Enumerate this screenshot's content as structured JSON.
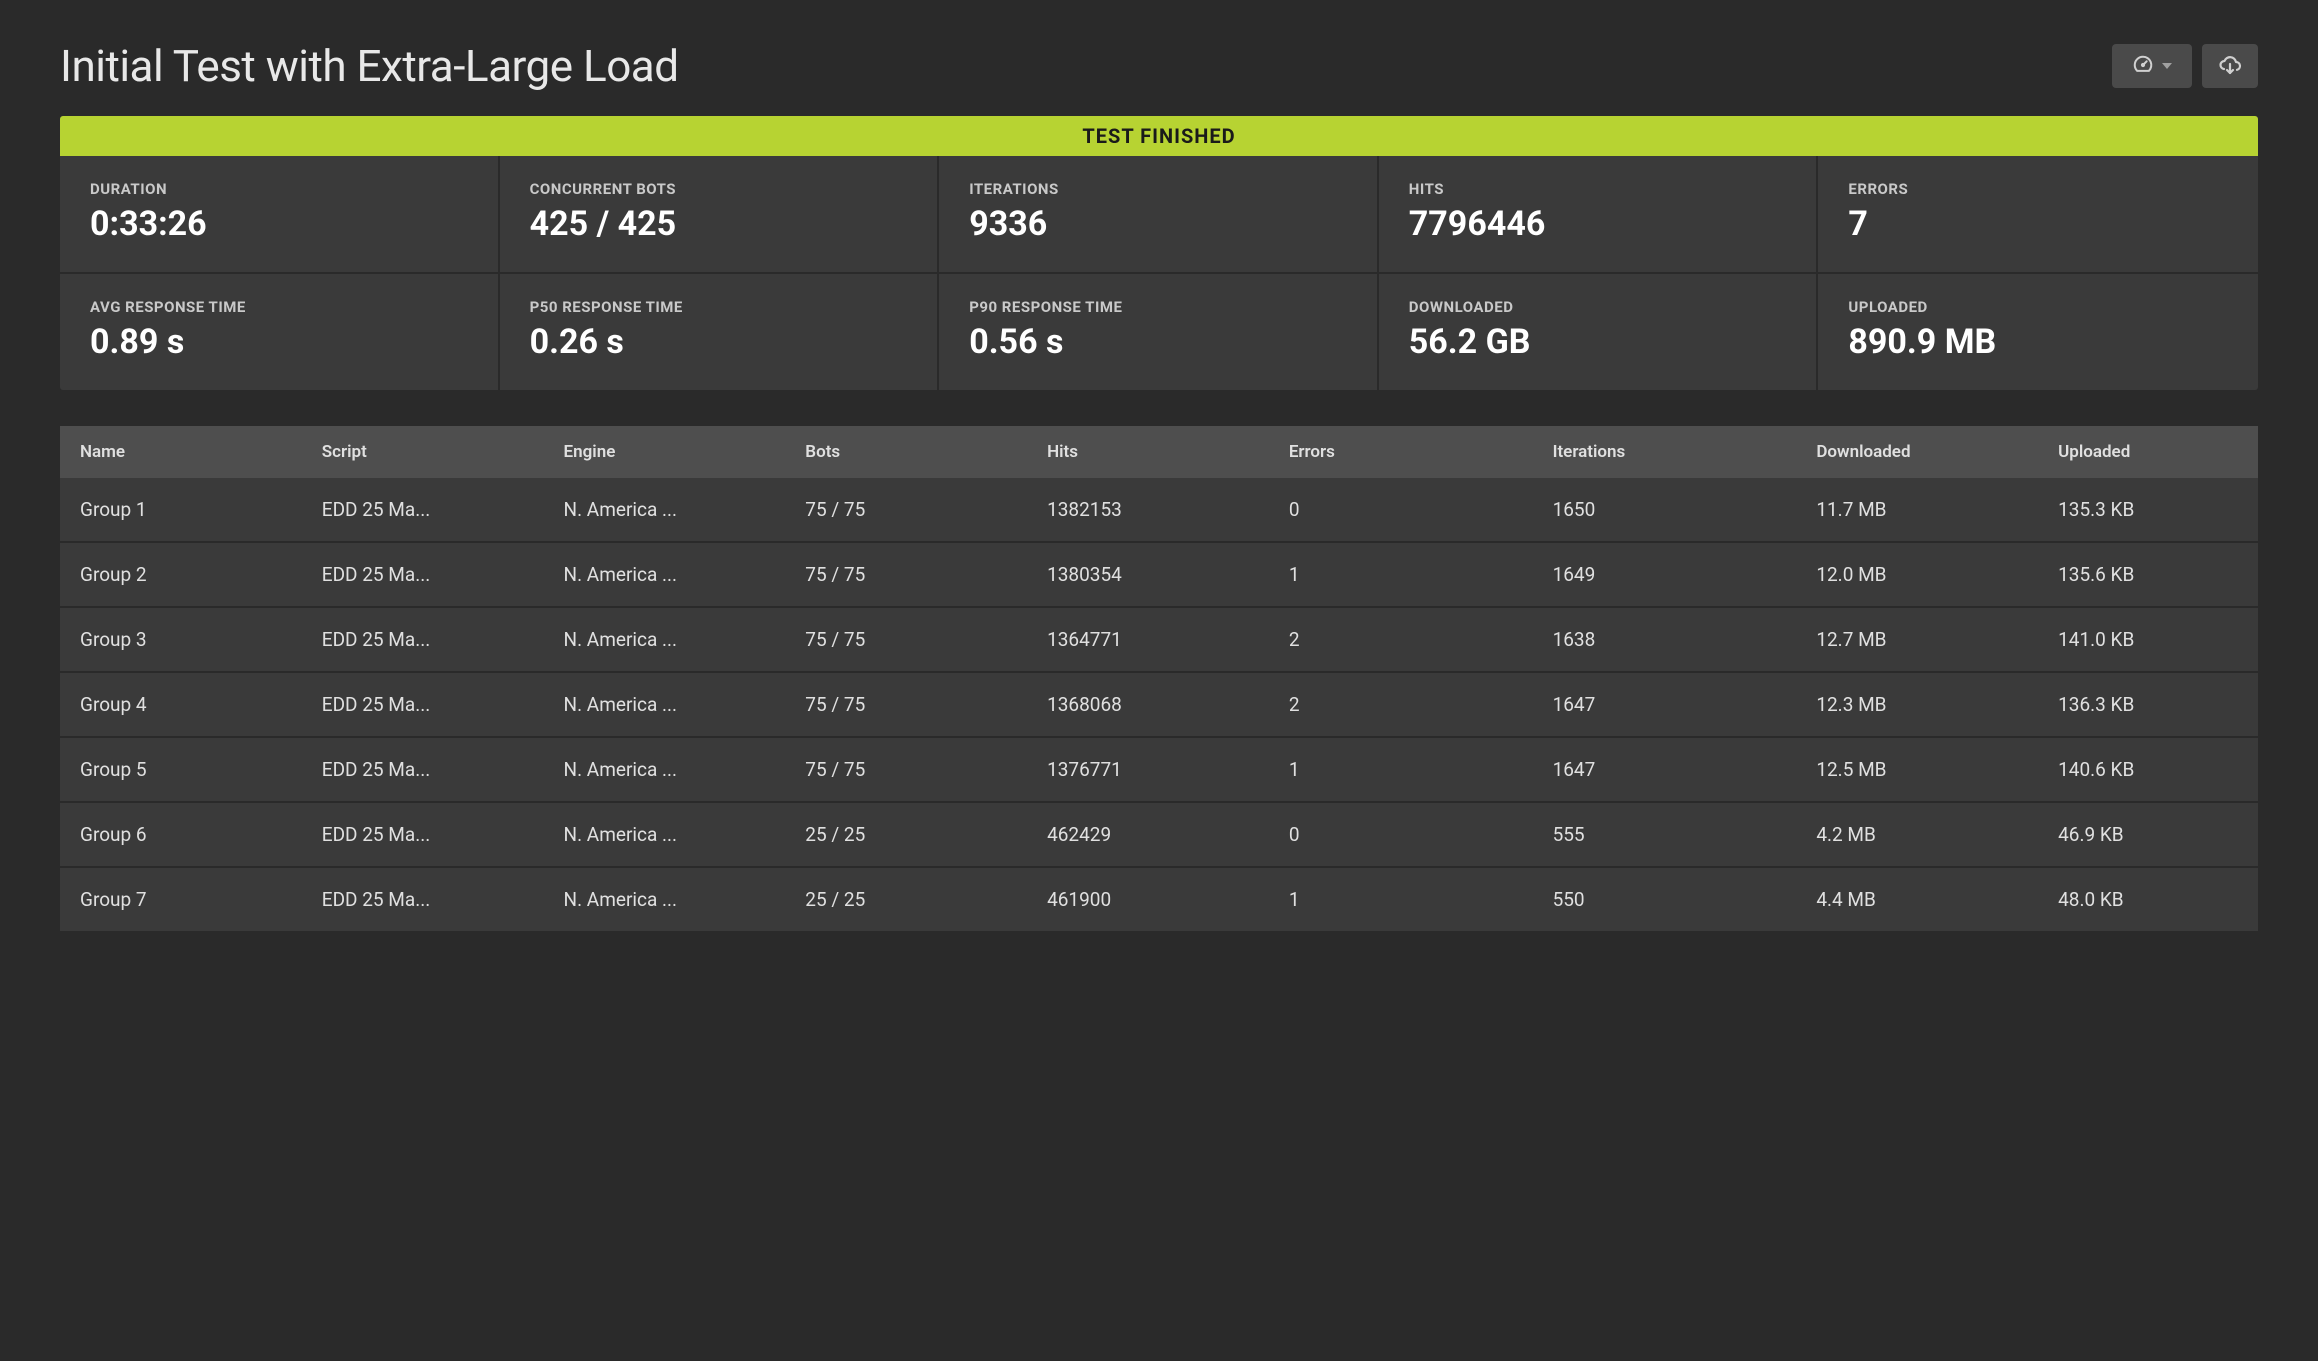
{
  "title": "Initial Test with Extra-Large Load",
  "status_text": "TEST FINISHED",
  "colors": {
    "background": "#2a2a2a",
    "panel": "#3a3a3a",
    "header_row": "#4e4e4e",
    "status_bg": "#b7d332",
    "status_fg": "#1a1a1a",
    "text": "#e8e8e8",
    "text_muted": "#c9c9c9"
  },
  "metrics": {
    "duration": {
      "label": "DURATION",
      "value": "0:33:26"
    },
    "concurrent": {
      "label": "CONCURRENT BOTS",
      "value": "425 / 425"
    },
    "iterations": {
      "label": "ITERATIONS",
      "value": "9336"
    },
    "hits": {
      "label": "HITS",
      "value": "7796446"
    },
    "errors": {
      "label": "ERRORS",
      "value": "7"
    },
    "avg_response": {
      "label": "AVG RESPONSE TIME",
      "value": "0.89 s"
    },
    "p50_response": {
      "label": "P50 RESPONSE TIME",
      "value": "0.26 s"
    },
    "p90_response": {
      "label": "P90 RESPONSE TIME",
      "value": "0.56 s"
    },
    "downloaded": {
      "label": "DOWNLOADED",
      "value": "56.2 GB"
    },
    "uploaded": {
      "label": "UPLOADED",
      "value": "890.9 MB"
    }
  },
  "table": {
    "columns": [
      "Name",
      "Script",
      "Engine",
      "Bots",
      "Hits",
      "Errors",
      "Iterations",
      "Downloaded",
      "Uploaded"
    ],
    "rows": [
      {
        "name": "Group 1",
        "script": "EDD 25 Ma...",
        "engine": "N. America ...",
        "bots": "75 / 75",
        "hits": "1382153",
        "errors": "0",
        "iterations": "1650",
        "downloaded": "11.7 MB",
        "uploaded": "135.3 KB"
      },
      {
        "name": "Group 2",
        "script": "EDD 25 Ma...",
        "engine": "N. America ...",
        "bots": "75 / 75",
        "hits": "1380354",
        "errors": "1",
        "iterations": "1649",
        "downloaded": "12.0 MB",
        "uploaded": "135.6 KB"
      },
      {
        "name": "Group 3",
        "script": "EDD 25 Ma...",
        "engine": "N. America ...",
        "bots": "75 / 75",
        "hits": "1364771",
        "errors": "2",
        "iterations": "1638",
        "downloaded": "12.7 MB",
        "uploaded": "141.0 KB"
      },
      {
        "name": "Group 4",
        "script": "EDD 25 Ma...",
        "engine": "N. America ...",
        "bots": "75 / 75",
        "hits": "1368068",
        "errors": "2",
        "iterations": "1647",
        "downloaded": "12.3 MB",
        "uploaded": "136.3 KB"
      },
      {
        "name": "Group 5",
        "script": "EDD 25 Ma...",
        "engine": "N. America ...",
        "bots": "75 / 75",
        "hits": "1376771",
        "errors": "1",
        "iterations": "1647",
        "downloaded": "12.5 MB",
        "uploaded": "140.6 KB"
      },
      {
        "name": "Group 6",
        "script": "EDD 25 Ma...",
        "engine": "N. America ...",
        "bots": "25 / 25",
        "hits": "462429",
        "errors": "0",
        "iterations": "555",
        "downloaded": "4.2 MB",
        "uploaded": "46.9 KB"
      },
      {
        "name": "Group 7",
        "script": "EDD 25 Ma...",
        "engine": "N. America ...",
        "bots": "25 / 25",
        "hits": "461900",
        "errors": "1",
        "iterations": "550",
        "downloaded": "4.4 MB",
        "uploaded": "48.0 KB"
      }
    ]
  }
}
